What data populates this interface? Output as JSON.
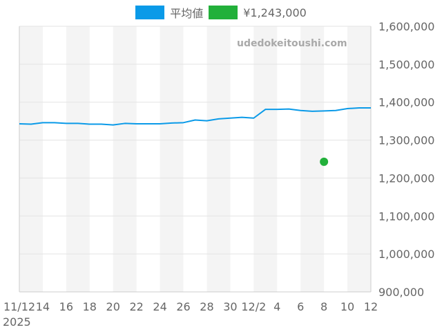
{
  "legend": {
    "average_label": "平均値",
    "price_label": "¥1,243,000"
  },
  "colors": {
    "average": "#0a9ae8",
    "price": "#22b03a",
    "band": "#f4f4f4",
    "grid": "#e3e3e3",
    "axis": "#cccccc",
    "text": "#666666"
  },
  "watermark": "udedokeitoushi.com",
  "year_label": "2025",
  "chart_data": {
    "type": "line",
    "title": "",
    "xlabel": "",
    "ylabel": "",
    "ylim": [
      900000,
      1600000
    ],
    "y_ticks": [
      {
        "value": 900000,
        "label": "900,000"
      },
      {
        "value": 1000000,
        "label": "1,000,000"
      },
      {
        "value": 1100000,
        "label": "1,100,000"
      },
      {
        "value": 1200000,
        "label": "1,200,000"
      },
      {
        "value": 1300000,
        "label": "1,300,000"
      },
      {
        "value": 1400000,
        "label": "1,400,000"
      },
      {
        "value": 1500000,
        "label": "1,500,000"
      },
      {
        "value": 1600000,
        "label": "1,600,000"
      }
    ],
    "x_range": [
      "2025-11-12",
      "2025-12-12"
    ],
    "x_ticks": [
      {
        "date": "2025-11-12",
        "label": "11/12"
      },
      {
        "date": "2025-11-14",
        "label": "14"
      },
      {
        "date": "2025-11-16",
        "label": "16"
      },
      {
        "date": "2025-11-18",
        "label": "18"
      },
      {
        "date": "2025-11-20",
        "label": "20"
      },
      {
        "date": "2025-11-22",
        "label": "22"
      },
      {
        "date": "2025-11-24",
        "label": "24"
      },
      {
        "date": "2025-11-26",
        "label": "26"
      },
      {
        "date": "2025-11-28",
        "label": "28"
      },
      {
        "date": "2025-11-30",
        "label": "30"
      },
      {
        "date": "2025-12-02",
        "label": "12/2"
      },
      {
        "date": "2025-12-04",
        "label": "4"
      },
      {
        "date": "2025-12-06",
        "label": "6"
      },
      {
        "date": "2025-12-08",
        "label": "8"
      },
      {
        "date": "2025-12-10",
        "label": "10"
      },
      {
        "date": "2025-12-12",
        "label": "12"
      }
    ],
    "grid": true,
    "legend_position": "top-center",
    "series": [
      {
        "name": "平均値",
        "type": "line",
        "points": [
          {
            "x": "2025-11-12",
            "y": 1343000
          },
          {
            "x": "2025-11-13",
            "y": 1342000
          },
          {
            "x": "2025-11-14",
            "y": 1346000
          },
          {
            "x": "2025-11-15",
            "y": 1346000
          },
          {
            "x": "2025-11-16",
            "y": 1344000
          },
          {
            "x": "2025-11-17",
            "y": 1344000
          },
          {
            "x": "2025-11-18",
            "y": 1342000
          },
          {
            "x": "2025-11-19",
            "y": 1342000
          },
          {
            "x": "2025-11-20",
            "y": 1340000
          },
          {
            "x": "2025-11-21",
            "y": 1344000
          },
          {
            "x": "2025-11-22",
            "y": 1343000
          },
          {
            "x": "2025-11-23",
            "y": 1343000
          },
          {
            "x": "2025-11-24",
            "y": 1343000
          },
          {
            "x": "2025-11-25",
            "y": 1345000
          },
          {
            "x": "2025-11-26",
            "y": 1346000
          },
          {
            "x": "2025-11-27",
            "y": 1353000
          },
          {
            "x": "2025-11-28",
            "y": 1351000
          },
          {
            "x": "2025-11-29",
            "y": 1356000
          },
          {
            "x": "2025-11-30",
            "y": 1358000
          },
          {
            "x": "2025-12-01",
            "y": 1360000
          },
          {
            "x": "2025-12-02",
            "y": 1358000
          },
          {
            "x": "2025-12-03",
            "y": 1381000
          },
          {
            "x": "2025-12-04",
            "y": 1381000
          },
          {
            "x": "2025-12-05",
            "y": 1382000
          },
          {
            "x": "2025-12-06",
            "y": 1378000
          },
          {
            "x": "2025-12-07",
            "y": 1376000
          },
          {
            "x": "2025-12-08",
            "y": 1377000
          },
          {
            "x": "2025-12-09",
            "y": 1378000
          },
          {
            "x": "2025-12-10",
            "y": 1383000
          },
          {
            "x": "2025-12-11",
            "y": 1385000
          },
          {
            "x": "2025-12-12",
            "y": 1385000
          }
        ]
      },
      {
        "name": "¥1,243,000",
        "type": "scatter",
        "points": [
          {
            "x": "2025-12-08",
            "y": 1243000
          }
        ]
      }
    ]
  }
}
